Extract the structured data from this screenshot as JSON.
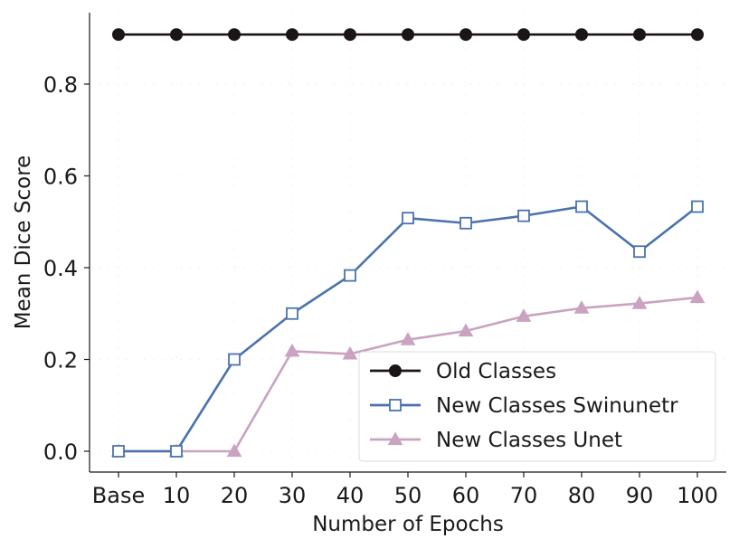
{
  "chart_data": {
    "type": "line",
    "title": "",
    "xlabel": "Number of Epochs",
    "ylabel": "Mean Dice Score",
    "categories": [
      "Base",
      "10",
      "20",
      "30",
      "40",
      "50",
      "60",
      "70",
      "80",
      "90",
      "100"
    ],
    "ylim": [
      -0.04,
      0.95
    ],
    "yticks": [
      0.0,
      0.2,
      0.4,
      0.6,
      0.8
    ],
    "ytick_labels": [
      "0.0",
      "0.2",
      "0.4",
      "0.6",
      "0.8"
    ],
    "grid": true,
    "legend_position": "lower-right",
    "series": [
      {
        "name": "Old Classes",
        "color": "#1b1517",
        "marker": "circle-filled",
        "values": [
          0.908,
          0.908,
          0.908,
          0.908,
          0.908,
          0.908,
          0.908,
          0.908,
          0.908,
          0.908,
          0.908
        ]
      },
      {
        "name": "New Classes Swinunetr",
        "color": "#4a73ad",
        "marker": "square-open",
        "values": [
          0.0,
          0.0,
          0.2,
          0.3,
          0.383,
          0.508,
          0.497,
          0.513,
          0.533,
          0.435,
          0.533
        ]
      },
      {
        "name": "New Classes Unet",
        "color": "#c9a3c0",
        "marker": "triangle-filled",
        "values": [
          0.0,
          0.0,
          0.0,
          0.218,
          0.212,
          0.243,
          0.262,
          0.294,
          0.312,
          0.322,
          0.335
        ]
      }
    ]
  }
}
